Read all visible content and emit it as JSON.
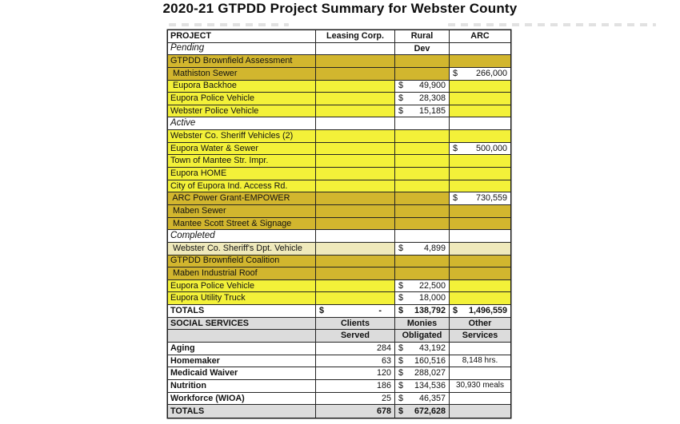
{
  "title": "2020-21 GTPDD Project Summary for Webster County",
  "currency": "$",
  "colors": {
    "gold": "#d2b62e",
    "yellow": "#f3f139",
    "pale": "#efe9bb",
    "gray": "#dcdcdc"
  },
  "project_table": {
    "columns": [
      "PROJECT",
      "Leasing Corp.",
      "Rural",
      "ARC"
    ],
    "rows": [
      {
        "label": "Pending",
        "kind": "section",
        "col2_text": "Dev"
      },
      {
        "label": "GTPDD Brownfield Assessment",
        "fill": "gold"
      },
      {
        "label": " Mathiston Sewer",
        "fill": "gold",
        "arc": "266,000"
      },
      {
        "label": " Eupora Backhoe",
        "fill": "yellow",
        "rural": "49,900"
      },
      {
        "label": "Eupora Police Vehicle",
        "fill": "yellow",
        "rural": "28,308"
      },
      {
        "label": "Webster Police Vehicle",
        "fill": "yellow",
        "rural": "15,185"
      },
      {
        "label": "Active",
        "kind": "section"
      },
      {
        "label": "Webster Co. Sheriff Vehicles (2)",
        "fill": "yellow"
      },
      {
        "label": "Eupora Water & Sewer",
        "fill": "yellow",
        "arc": "500,000"
      },
      {
        "label": "Town of Mantee Str. Impr.",
        "fill": "yellow"
      },
      {
        "label": "Eupora HOME",
        "fill": "yellow"
      },
      {
        "label": "City of Eupora Ind. Access Rd.",
        "fill": "yellow"
      },
      {
        "label": " ARC Power Grant-EMPOWER",
        "fill": "gold",
        "arc": "730,559"
      },
      {
        "label": " Maben Sewer",
        "fill": "gold"
      },
      {
        "label": " Mantee Scott Street & Signage",
        "fill": "gold"
      },
      {
        "label": "Completed",
        "kind": "section"
      },
      {
        "label": " Webster Co. Sheriff's Dpt. Vehicle",
        "fill": "pale",
        "rural": "4,899"
      },
      {
        "label": "GTPDD Brownfield Coalition",
        "fill": "gold"
      },
      {
        "label": " Maben Industrial Roof",
        "fill": "gold"
      },
      {
        "label": "Eupora Police Vehicle",
        "fill": "yellow",
        "rural": "22,500"
      },
      {
        "label": "Eupora Utility Truck",
        "fill": "yellow",
        "rural": "18,000"
      },
      {
        "label": "TOTALS",
        "kind": "totals",
        "leasing": "-",
        "rural": "138,792",
        "arc": "1,496,559"
      }
    ]
  },
  "social_table": {
    "header_row1": [
      "SOCIAL SERVICES",
      "Clients",
      "Monies",
      "Other"
    ],
    "header_row2": [
      "",
      "Served",
      "Obligated",
      "Services"
    ],
    "rows": [
      {
        "label": "Aging",
        "clients": "284",
        "monies": "43,192",
        "other": ""
      },
      {
        "label": "Homemaker",
        "clients": "63",
        "monies": "160,516",
        "other": "8,148 hrs."
      },
      {
        "label": "Medicaid Waiver",
        "clients": "120",
        "monies": "288,027",
        "other": ""
      },
      {
        "label": "Nutrition",
        "clients": "186",
        "monies": "134,536",
        "other": ""
      },
      {
        "label": "Workforce (WIOA)",
        "clients": "25",
        "monies": "46,357",
        "other": ""
      },
      {
        "label": "TOTALS",
        "kind": "totals",
        "clients": "678",
        "monies": "672,628",
        "other": ""
      }
    ],
    "other_notes": {
      "nutrition": "30,930 meals"
    }
  }
}
